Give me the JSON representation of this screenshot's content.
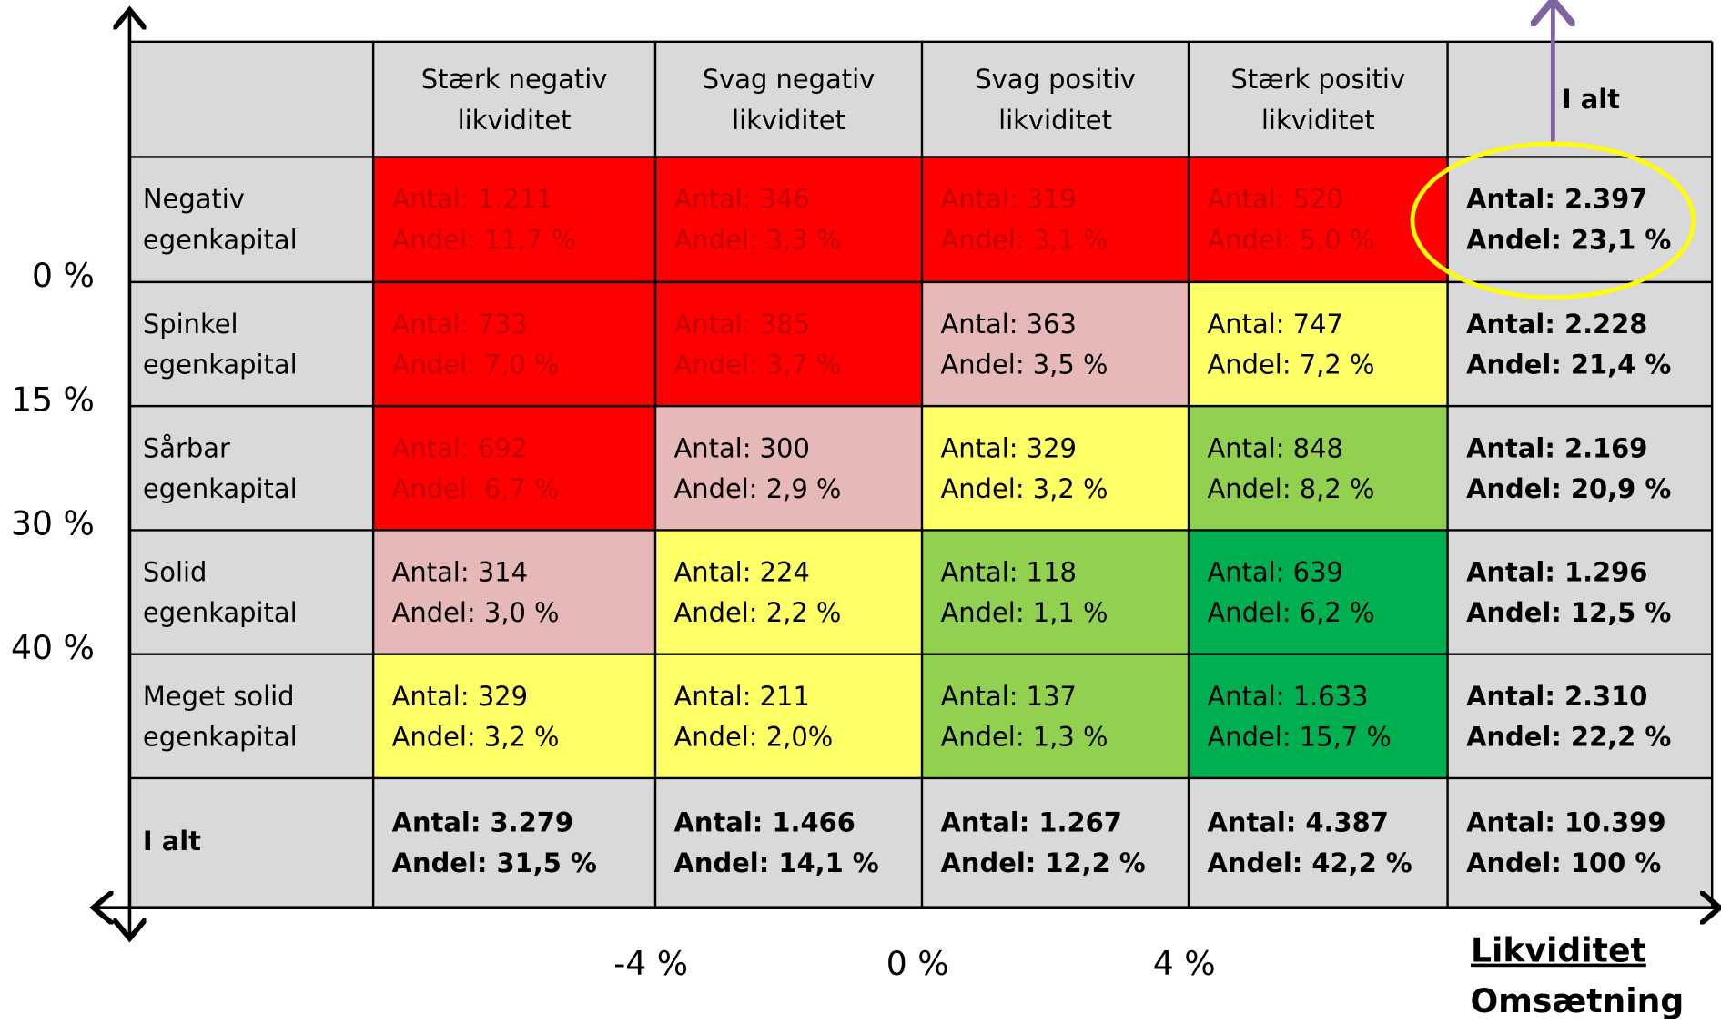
{
  "y_axis_labels": [
    "0 %",
    "15 %",
    "30 %",
    "40 %"
  ],
  "x_axis_labels": [
    "-4 %",
    "0 %",
    "4 %"
  ],
  "x_axis_title": "Likviditet",
  "x_axis_subtitle": "Omsætning",
  "table": {
    "header": [
      [
        "Stærk negativ",
        "likviditet"
      ],
      [
        "Svag negativ",
        "likviditet"
      ],
      [
        "Svag positiv",
        "likviditet"
      ],
      [
        "Stærk positiv",
        "likviditet"
      ],
      [
        "I alt"
      ]
    ],
    "rows": [
      {
        "label": [
          "Negativ",
          "egenkapital"
        ],
        "cells": [
          {
            "lines": [
              "Antal: 1.211",
              "Andel: 11,7 %"
            ],
            "color": "#ff0000"
          },
          {
            "lines": [
              "Antal: 346",
              "Andel: 3,3 %"
            ],
            "color": "#ff0000"
          },
          {
            "lines": [
              "Antal: 319",
              "Andel: 3,1 %"
            ],
            "color": "#ff0000"
          },
          {
            "lines": [
              "Antal: 520",
              "Andel: 5,0 %"
            ],
            "color": "#ff0000"
          },
          {
            "lines": [
              "Antal: 2.397",
              "Andel: 23,1 %"
            ],
            "color": "#d9d9d9"
          }
        ]
      },
      {
        "label": [
          "Spinkel",
          "egenkapital"
        ],
        "cells": [
          {
            "lines": [
              "Antal: 733",
              "Andel: 7,0 %"
            ],
            "color": "#ff0000"
          },
          {
            "lines": [
              "Antal: 385",
              "Andel: 3,7 %"
            ],
            "color": "#ff0000"
          },
          {
            "lines": [
              "Antal: 363",
              "Andel: 3,5 %"
            ],
            "color": "#e6b8b7"
          },
          {
            "lines": [
              "Antal: 747",
              "Andel: 7,2 %"
            ],
            "color": "#ffff66"
          },
          {
            "lines": [
              "Antal: 2.228",
              "Andel: 21,4 %"
            ],
            "color": "#d9d9d9"
          }
        ]
      },
      {
        "label": [
          "Sårbar",
          "egenkapital"
        ],
        "cells": [
          {
            "lines": [
              "Antal: 692",
              "Andel: 6,7 %"
            ],
            "color": "#ff0000"
          },
          {
            "lines": [
              "Antal: 300",
              "Andel: 2,9 %"
            ],
            "color": "#e6b8b7"
          },
          {
            "lines": [
              "Antal: 329",
              "Andel: 3,2 %"
            ],
            "color": "#ffff66"
          },
          {
            "lines": [
              "Antal: 848",
              "Andel: 8,2 %"
            ],
            "color": "#92d050"
          },
          {
            "lines": [
              "Antal: 2.169",
              "Andel: 20,9 %"
            ],
            "color": "#d9d9d9"
          }
        ]
      },
      {
        "label": [
          "Solid",
          "egenkapital"
        ],
        "cells": [
          {
            "lines": [
              "Antal: 314",
              "Andel: 3,0 %"
            ],
            "color": "#e6b8b7"
          },
          {
            "lines": [
              "Antal: 224",
              "Andel: 2,2 %"
            ],
            "color": "#ffff66"
          },
          {
            "lines": [
              "Antal: 118",
              "Andel: 1,1 %"
            ],
            "color": "#92d050"
          },
          {
            "lines": [
              "Antal: 639",
              "Andel: 6,2 %"
            ],
            "color": "#00b050"
          },
          {
            "lines": [
              "Antal: 1.296",
              "Andel: 12,5 %"
            ],
            "color": "#d9d9d9"
          }
        ]
      },
      {
        "label": [
          "Meget solid",
          "egenkapital"
        ],
        "cells": [
          {
            "lines": [
              "Antal: 329",
              "Andel: 3,2 %"
            ],
            "color": "#ffff66"
          },
          {
            "lines": [
              "Antal: 211",
              "Andel: 2,0%"
            ],
            "color": "#ffff66"
          },
          {
            "lines": [
              "Antal: 137",
              "Andel: 1,3 %"
            ],
            "color": "#92d050"
          },
          {
            "lines": [
              "Antal: 1.633",
              "Andel: 15,7 %"
            ],
            "color": "#00b050"
          },
          {
            "lines": [
              "Antal: 2.310",
              "Andel: 22,2 %"
            ],
            "color": "#d9d9d9"
          }
        ]
      },
      {
        "label": [
          "I alt"
        ],
        "total": true,
        "cells": [
          {
            "lines": [
              "Antal: 3.279",
              "Andel: 31,5 %"
            ],
            "color": "#d9d9d9"
          },
          {
            "lines": [
              "Antal: 1.466",
              "Andel: 14,1 %"
            ],
            "color": "#d9d9d9"
          },
          {
            "lines": [
              "Antal: 1.267",
              "Andel: 12,2 %"
            ],
            "color": "#d9d9d9"
          },
          {
            "lines": [
              "Antal: 4.387",
              "Andel: 42,2 %"
            ],
            "color": "#d9d9d9"
          },
          {
            "lines": [
              "Antal: 10.399",
              "Andel: 100 %"
            ],
            "color": "#d9d9d9"
          }
        ]
      }
    ]
  }
}
